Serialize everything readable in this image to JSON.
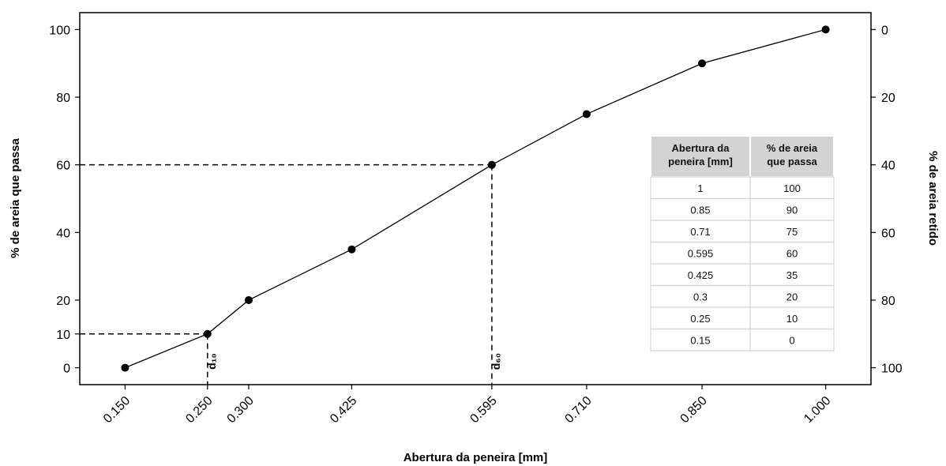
{
  "chart_data": {
    "type": "line",
    "x": [
      0.15,
      0.25,
      0.3,
      0.425,
      0.595,
      0.71,
      0.85,
      1.0
    ],
    "y": [
      0,
      10,
      20,
      35,
      60,
      75,
      90,
      100
    ],
    "x_tick_labels": [
      "0.150",
      "0.250",
      "0.300",
      "0.425",
      "0.595",
      "0.710",
      "0.850",
      "1.000"
    ],
    "xlim": [
      0.095,
      1.055
    ],
    "ylim": [
      -5,
      105
    ],
    "y_ticks": [
      0,
      10,
      20,
      40,
      60,
      80,
      100
    ],
    "y2_ticks": [
      0,
      20,
      40,
      60,
      80,
      100
    ],
    "y2_inverted": true,
    "xlabel": "Abertura da peneira [mm]",
    "ylabel": "% de areia que passa",
    "y2label": "% de areia retido",
    "grid": false,
    "annotations": [
      {
        "label": "d₁₀",
        "x": 0.25,
        "y": 10
      },
      {
        "label": "d₆₀",
        "x": 0.595,
        "y": 60
      }
    ],
    "table": {
      "headers": [
        "Abertura da\npeneira [mm]",
        "% de areia\nque passa"
      ],
      "rows": [
        [
          "1",
          "100"
        ],
        [
          "0.85",
          "90"
        ],
        [
          "0.71",
          "75"
        ],
        [
          "0.595",
          "60"
        ],
        [
          "0.425",
          "35"
        ],
        [
          "0.3",
          "20"
        ],
        [
          "0.25",
          "10"
        ],
        [
          "0.15",
          "0"
        ]
      ]
    },
    "colors": {
      "line": "#000000",
      "marker": "#000000",
      "table_header_bg": "#d3d3d3",
      "table_border": "#d3d3d3"
    }
  }
}
